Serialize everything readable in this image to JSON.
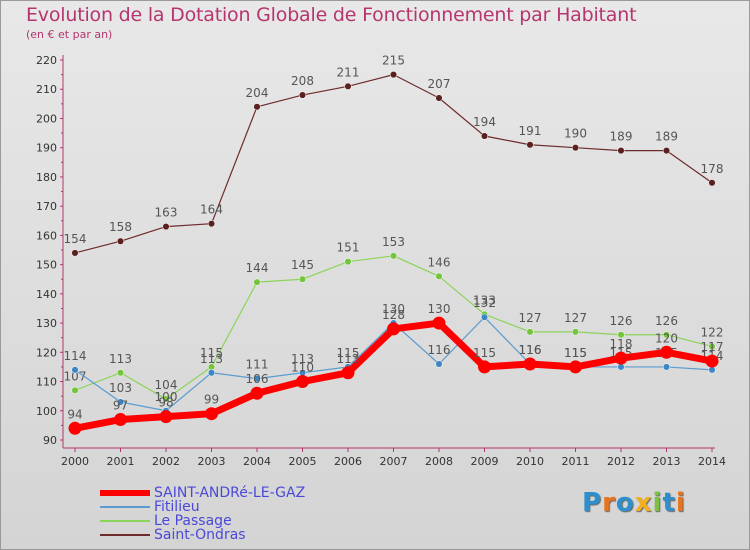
{
  "chart_data": {
    "type": "line",
    "title": "Evolution de la Dotation Globale de Fonctionnement par Habitant",
    "subtitle": "(en € et par an)",
    "x": [
      "2000",
      "2001",
      "2002",
      "2003",
      "2004",
      "2005",
      "2006",
      "2007",
      "2008",
      "2009",
      "2010",
      "2011",
      "2012",
      "2013",
      "2014"
    ],
    "y_ticks": [
      90,
      100,
      110,
      120,
      130,
      140,
      150,
      160,
      170,
      180,
      190,
      200,
      210,
      220
    ],
    "ylim": [
      90,
      220
    ],
    "grid": false,
    "series": [
      {
        "name": "Saint-Ondras",
        "color": "#6e2b2b",
        "marker": "#5a1f1f",
        "values": [
          154,
          158,
          163,
          164,
          204,
          208,
          211,
          215,
          207,
          194,
          191,
          190,
          189,
          189,
          178
        ]
      },
      {
        "name": "Le Passage",
        "color": "#8bd45a",
        "marker": "#74c43c",
        "values": [
          107,
          113,
          104,
          115,
          144,
          145,
          151,
          153,
          146,
          133,
          127,
          127,
          126,
          126,
          122
        ]
      },
      {
        "name": "Fitilieu",
        "color": "#5b9bd0",
        "marker": "#3d86c6",
        "values": [
          114,
          103,
          100,
          113,
          111,
          113,
          115,
          130,
          116,
          132,
          116,
          115,
          115,
          115,
          114
        ]
      },
      {
        "name": "SAINT-ANDRé-LE-GAZ",
        "color": "#ff0000",
        "marker": "#ff0000",
        "values": [
          94,
          97,
          98,
          99,
          106,
          110,
          113,
          128,
          130,
          115,
          116,
          115,
          118,
          120,
          117
        ]
      }
    ],
    "legend": "bottom-left"
  },
  "logo": {
    "text": "Proxiti",
    "colors": [
      "#2e8fcf",
      "#e8741c",
      "#2e8fcf",
      "#f0b020",
      "#7cc142",
      "#2e8fcf",
      "#e8741c"
    ]
  }
}
